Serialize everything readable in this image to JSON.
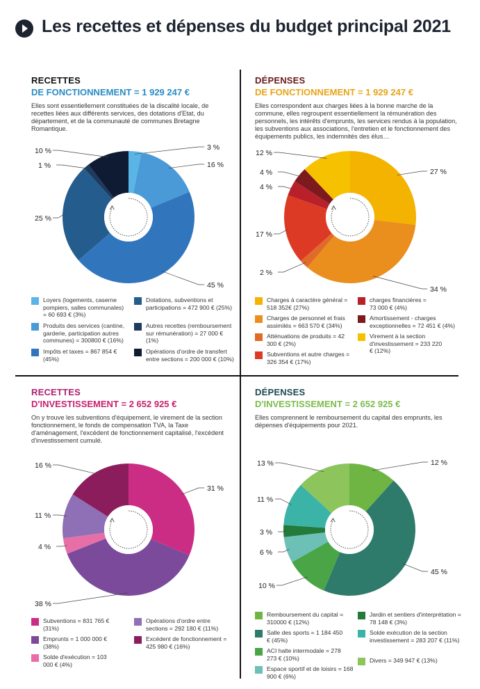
{
  "header": {
    "title": "Les recettes et dépenses du budget principal 2021",
    "icon": "play-circle-icon"
  },
  "sections": [
    {
      "id": "recettes-fonctionnement",
      "title1": "RECETTES",
      "title2": "DE FONCTIONNEMENT = 1 929 247 €",
      "title1_color": "#111111",
      "title2_color": "#2a8cc4",
      "description": "Elles sont essentiellement constituées de la discalité locale, de recettes liées aux différents services, des dotations d'Etat, du département, et de la communauté de communes Bretagne Romantique.",
      "legend": [
        {
          "label": "Loyers (logements, caserne pompiers, salles communales) = 60 693 € (3%)",
          "color": "#5bb4e6"
        },
        {
          "label": "Produits des services (cantine, garderie, participation autres communes) = 300800 € (16%)",
          "color": "#4a9ad8"
        },
        {
          "label": "Impôts et taxes = 867 854 € (45%)",
          "color": "#3176bd"
        },
        {
          "label": "Dotations, subventions et participations = 472 900 € (25%)",
          "color": "#245c8e"
        },
        {
          "label": "Autres recettes (remboursement sur rémunération) = 27 000 € (1%)",
          "color": "#1e3a5f"
        },
        {
          "label": "Opérations d'ordre de transfert entre sections = 200 000 € (10%)",
          "color": "#0e1b33"
        }
      ]
    },
    {
      "id": "depenses-fonctionnement",
      "title1": "DÉPENSES",
      "title2": "DE FONCTIONNEMENT = 1 929 247 €",
      "title1_color": "#6b1a1a",
      "title2_color": "#e8a318",
      "description": "Elles correspondent aux charges liées à la bonne marche de la commune, elles regroupent essentiellement la rémunération des personnels, les intérêts d'emprunts, les services rendus à la population, les subventions aux associations, l'entretien et le fonctionnement des équipements publics, les indemnités des élus…",
      "legend": [
        {
          "label": "Charges à caractère général = 518 352€ (27%)",
          "color": "#f3b300"
        },
        {
          "label": "Charges de personnel et frais assimilés = 663 570 € (34%)",
          "color": "#ea8e1d"
        },
        {
          "label": "Atténuations de produits = 42 300 € (2%)",
          "color": "#e06a28"
        },
        {
          "label": "Subventions et autre charges = 326 354 € (17%)",
          "color": "#dd3a25"
        },
        {
          "label": "charges financières = 73 000 € (4%)",
          "color": "#b8202a"
        },
        {
          "label": "Amortissement - charges exceptionnelles = 72 451 € (4%)",
          "color": "#7d1a1d"
        },
        {
          "label": "Virement à la section d'investissement = 233 220 € (12%)",
          "color": "#f6c200"
        }
      ]
    },
    {
      "id": "recettes-investissement",
      "title1": "RECETTES",
      "title2": "D'INVESTISSEMENT = 2 652 925 €",
      "title1_color": "#b01f6e",
      "title2_color": "#c6216f",
      "description": "On y trouve les subventions d'équipement, le virement de la section fonctionnement, le fonds de compensation TVA, la Taxe d'aménagement, l'excédent de fonctionnement capitalisé, l'excédent d'investissement cumulé.",
      "legend": [
        {
          "label": "Subventions = 831 765 € (31%)",
          "color": "#cb2d84"
        },
        {
          "label": "Emprunts = 1 000 000 € (38%)",
          "color": "#7c4a9b"
        },
        {
          "label": "Solde d'exécution = 103 000 € (4%)",
          "color": "#e76fa8"
        },
        {
          "label": "Opérations d'ordre entre sections = 292 180 € (11%)",
          "color": "#8f6fb6"
        },
        {
          "label": "Excédent de fonctionnement = 425 980 € (16%)",
          "color": "#8c1d5c"
        }
      ]
    },
    {
      "id": "depenses-investissement",
      "title1": "DÉPENSES",
      "title2": "D'INVESTISSEMENT = 2 652 925 €",
      "title1_color": "#1d4a52",
      "title2_color": "#7dbb4d",
      "description": "Elles comprennent le remboursement du capital des emprunts, les dépenses d'équipements pour 2021.",
      "legend": [
        {
          "label": "Remboursement du capital = 310000 € (12%)",
          "color": "#6fb544"
        },
        {
          "label": "Salle des sports = 1 184 450 € (45%)",
          "color": "#2e7a6b"
        },
        {
          "label": "ACI halte intermodale = 278 273 € (10%)",
          "color": "#49a546"
        },
        {
          "label": "Espace sportif et de loisirs = 168 900 € (6%)",
          "color": "#6cc0b6"
        },
        {
          "label": "Jardin et sentiers d'interprétation = 78 148 € (3%)",
          "color": "#237a3a"
        },
        {
          "label": "Solde exécution de la section investissement = 283 207 € (11%)",
          "color": "#3bb3a6"
        },
        {
          "label": "Divers = 349 947 € (13%)",
          "color": "#8dc55c"
        }
      ]
    }
  ],
  "chart_data": [
    {
      "type": "pie",
      "title": "RECETTES DE FONCTIONNEMENT = 1 929 247 €",
      "categories": [
        "Loyers (logements, caserne pompiers, salles communales)",
        "Produits des services (cantine, garderie, participation autres communes)",
        "Impôts et taxes",
        "Dotations, subventions et participations",
        "Autres recettes (remboursement sur rémunération)",
        "Opérations d'ordre de transfert entre sections"
      ],
      "values": [
        60693,
        300800,
        867854,
        472900,
        27000,
        200000
      ],
      "labels": [
        "3 %",
        "16 %",
        "45 %",
        "25 %",
        "1 %",
        "10 %"
      ],
      "colors": [
        "#5bb4e6",
        "#4a9ad8",
        "#3176bd",
        "#245c8e",
        "#1e3a5f",
        "#0e1b33"
      ]
    },
    {
      "type": "pie",
      "title": "DÉPENSES DE FONCTIONNEMENT = 1 929 247 €",
      "categories": [
        "Charges à caractère général",
        "Charges de personnel et frais assimilés",
        "Atténuations de produits",
        "Subventions et autre charges",
        "charges financières",
        "Amortissement - charges exceptionnelles",
        "Virement à la section d'investissement"
      ],
      "values": [
        518352,
        663570,
        42300,
        326354,
        73000,
        72451,
        233220
      ],
      "labels": [
        "27 %",
        "34 %",
        "2 %",
        "17 %",
        "4 %",
        "4 %",
        "12 %"
      ],
      "colors": [
        "#f3b300",
        "#ea8e1d",
        "#e06a28",
        "#dd3a25",
        "#b8202a",
        "#7d1a1d",
        "#f6c200"
      ]
    },
    {
      "type": "pie",
      "title": "RECETTES D'INVESTISSEMENT = 2 652 925 €",
      "categories": [
        "Subventions",
        "Emprunts",
        "Solde d'exécution",
        "Opérations d'ordre entre sections",
        "Excédent de fonctionnement"
      ],
      "values": [
        831765,
        1000000,
        103000,
        292180,
        425980
      ],
      "labels": [
        "31 %",
        "38 %",
        "4 %",
        "11 %",
        "16 %"
      ],
      "colors": [
        "#cb2d84",
        "#7c4a9b",
        "#e76fa8",
        "#8f6fb6",
        "#8c1d5c"
      ]
    },
    {
      "type": "pie",
      "title": "DÉPENSES D'INVESTISSEMENT = 2 652 925 €",
      "categories": [
        "Remboursement du capital",
        "Salle des sports",
        "ACI halte intermodale",
        "Espace sportif et de loisirs",
        "Jardin et sentiers d'interprétation",
        "Solde exécution de la section investissement",
        "Divers"
      ],
      "values": [
        310000,
        1184450,
        278273,
        168900,
        78148,
        283207,
        349947
      ],
      "labels": [
        "12 %",
        "45 %",
        "10 %",
        "6 %",
        "3 %",
        "11 %",
        "13 %"
      ],
      "colors": [
        "#6fb544",
        "#2e7a6b",
        "#49a546",
        "#6cc0b6",
        "#237a3a",
        "#3bb3a6",
        "#8dc55c"
      ]
    }
  ]
}
